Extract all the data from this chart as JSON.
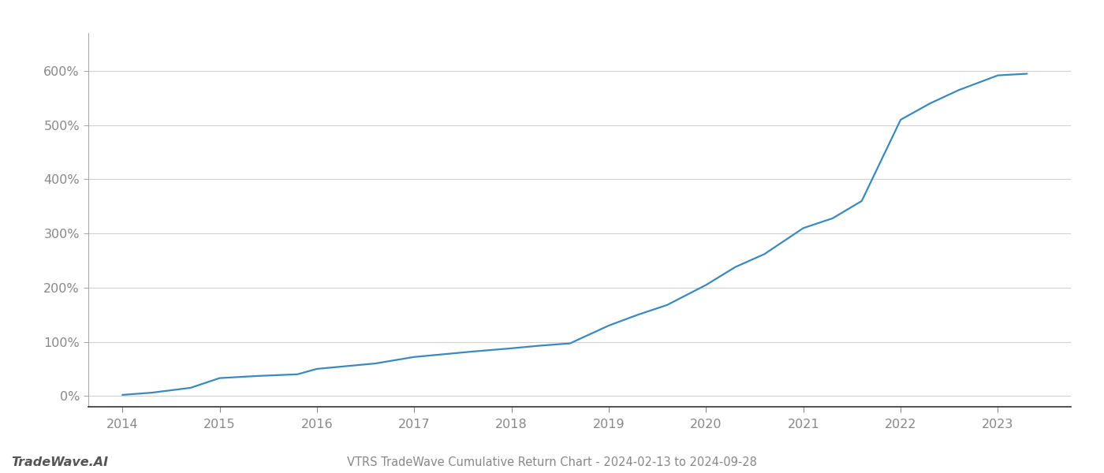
{
  "title": "VTRS TradeWave Cumulative Return Chart - 2024-02-13 to 2024-09-28",
  "watermark": "TradeWave.AI",
  "line_color": "#3a8abf",
  "background_color": "#ffffff",
  "grid_color": "#d0d0d0",
  "x_years": [
    2014.0,
    2014.3,
    2014.7,
    2015.0,
    2015.4,
    2015.8,
    2016.0,
    2016.3,
    2016.6,
    2017.0,
    2017.3,
    2017.6,
    2018.0,
    2018.3,
    2018.6,
    2019.0,
    2019.3,
    2019.6,
    2020.0,
    2020.3,
    2020.6,
    2021.0,
    2021.3,
    2021.6,
    2022.0,
    2022.3,
    2022.6,
    2023.0,
    2023.3
  ],
  "y_values": [
    2,
    6,
    15,
    33,
    37,
    40,
    50,
    55,
    60,
    72,
    77,
    82,
    88,
    93,
    97,
    130,
    150,
    168,
    205,
    238,
    262,
    310,
    328,
    360,
    510,
    540,
    565,
    592,
    595
  ],
  "x_ticks": [
    2014,
    2015,
    2016,
    2017,
    2018,
    2019,
    2020,
    2021,
    2022,
    2023
  ],
  "y_ticks": [
    0,
    100,
    200,
    300,
    400,
    500,
    600
  ],
  "xlim": [
    2013.65,
    2023.75
  ],
  "ylim": [
    -20,
    670
  ],
  "title_fontsize": 10.5,
  "tick_fontsize": 11.5,
  "watermark_fontsize": 11.5,
  "line_width": 1.6
}
